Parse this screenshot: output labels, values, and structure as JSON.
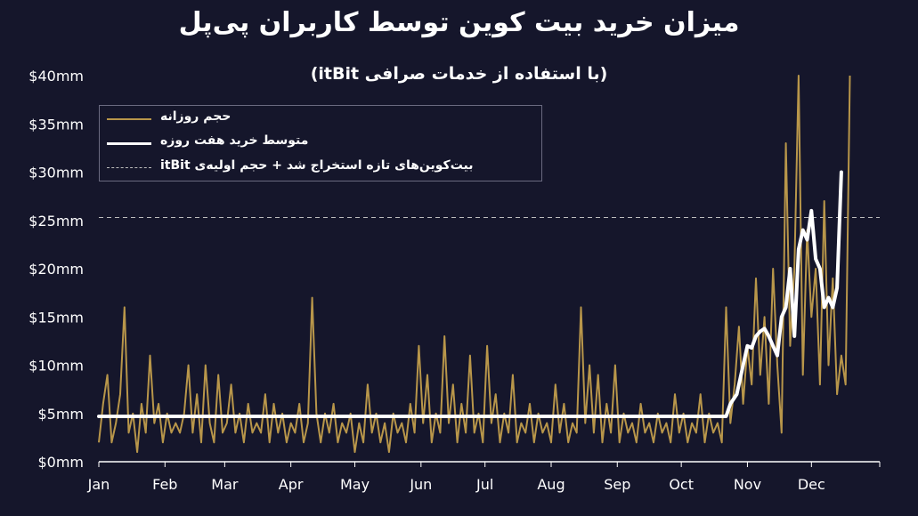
{
  "title": "میزان خرید بیت کوین توسط کاربران پی‌پل",
  "subtitle": "(با استفاده از خدمات صرافی itBit)",
  "legend": {
    "daily": "حجم روزانه",
    "avg": "متوسط خرید هفت روزه",
    "ref": "بیت‌کوین‌های تازه استخراج شد + حجم اولیه‌ی itBit"
  },
  "colors": {
    "background": "#15162b",
    "daily": "#b8964a",
    "avg": "#ffffff",
    "ref": "#bdbdbd"
  },
  "chart_data": {
    "type": "line",
    "xlabel": "",
    "ylabel": "",
    "x_ticks": [
      "Jan",
      "Feb",
      "Mar",
      "Apr",
      "May",
      "Jun",
      "Jul",
      "Aug",
      "Sep",
      "Oct",
      "Nov",
      "Dec"
    ],
    "y_ticks": [
      "$0mm",
      "$5mm",
      "$10mm",
      "$15mm",
      "$20mm",
      "$25mm",
      "$30mm",
      "$35mm",
      "$40mm"
    ],
    "ylim": [
      0,
      40
    ],
    "xlim_days": [
      1,
      367
    ],
    "reference_line": 25.3,
    "grid": false,
    "legend_position": "top-left",
    "series": [
      {
        "name": "حجم روزانه",
        "points": [
          [
            1,
            2
          ],
          [
            3,
            6
          ],
          [
            5,
            9
          ],
          [
            7,
            2
          ],
          [
            9,
            4
          ],
          [
            11,
            7
          ],
          [
            13,
            16
          ],
          [
            15,
            3
          ],
          [
            17,
            5
          ],
          [
            19,
            1
          ],
          [
            21,
            6
          ],
          [
            23,
            3
          ],
          [
            25,
            11
          ],
          [
            27,
            4
          ],
          [
            29,
            6
          ],
          [
            31,
            2
          ],
          [
            33,
            5
          ],
          [
            35,
            3
          ],
          [
            37,
            4
          ],
          [
            39,
            3
          ],
          [
            41,
            5
          ],
          [
            43,
            10
          ],
          [
            45,
            3
          ],
          [
            47,
            7
          ],
          [
            49,
            2
          ],
          [
            51,
            10
          ],
          [
            53,
            4
          ],
          [
            55,
            2
          ],
          [
            57,
            9
          ],
          [
            59,
            3
          ],
          [
            61,
            4
          ],
          [
            63,
            8
          ],
          [
            65,
            3
          ],
          [
            67,
            5
          ],
          [
            69,
            2
          ],
          [
            71,
            6
          ],
          [
            73,
            3
          ],
          [
            75,
            4
          ],
          [
            77,
            3
          ],
          [
            79,
            7
          ],
          [
            81,
            2
          ],
          [
            83,
            6
          ],
          [
            85,
            3
          ],
          [
            87,
            5
          ],
          [
            89,
            2
          ],
          [
            91,
            4
          ],
          [
            93,
            3
          ],
          [
            95,
            6
          ],
          [
            97,
            2
          ],
          [
            99,
            4
          ],
          [
            101,
            17
          ],
          [
            103,
            5
          ],
          [
            105,
            2
          ],
          [
            107,
            5
          ],
          [
            109,
            3
          ],
          [
            111,
            6
          ],
          [
            113,
            2
          ],
          [
            115,
            4
          ],
          [
            117,
            3
          ],
          [
            119,
            5
          ],
          [
            121,
            1
          ],
          [
            123,
            4
          ],
          [
            125,
            2
          ],
          [
            127,
            8
          ],
          [
            129,
            3
          ],
          [
            131,
            5
          ],
          [
            133,
            2
          ],
          [
            135,
            4
          ],
          [
            137,
            1
          ],
          [
            139,
            5
          ],
          [
            141,
            3
          ],
          [
            143,
            4
          ],
          [
            145,
            2
          ],
          [
            147,
            6
          ],
          [
            149,
            3
          ],
          [
            151,
            12
          ],
          [
            153,
            4
          ],
          [
            155,
            9
          ],
          [
            157,
            2
          ],
          [
            159,
            5
          ],
          [
            161,
            3
          ],
          [
            163,
            13
          ],
          [
            165,
            4
          ],
          [
            167,
            8
          ],
          [
            169,
            2
          ],
          [
            171,
            6
          ],
          [
            173,
            3
          ],
          [
            175,
            11
          ],
          [
            177,
            3
          ],
          [
            179,
            5
          ],
          [
            181,
            2
          ],
          [
            183,
            12
          ],
          [
            185,
            4
          ],
          [
            187,
            7
          ],
          [
            189,
            2
          ],
          [
            191,
            5
          ],
          [
            193,
            3
          ],
          [
            195,
            9
          ],
          [
            197,
            2
          ],
          [
            199,
            4
          ],
          [
            201,
            3
          ],
          [
            203,
            6
          ],
          [
            205,
            2
          ],
          [
            207,
            5
          ],
          [
            209,
            3
          ],
          [
            211,
            4
          ],
          [
            213,
            2
          ],
          [
            215,
            8
          ],
          [
            217,
            3
          ],
          [
            219,
            6
          ],
          [
            221,
            2
          ],
          [
            223,
            4
          ],
          [
            225,
            3
          ],
          [
            227,
            16
          ],
          [
            229,
            4
          ],
          [
            231,
            10
          ],
          [
            233,
            3
          ],
          [
            235,
            9
          ],
          [
            237,
            2
          ],
          [
            239,
            6
          ],
          [
            241,
            3
          ],
          [
            243,
            10
          ],
          [
            245,
            2
          ],
          [
            247,
            5
          ],
          [
            249,
            3
          ],
          [
            251,
            4
          ],
          [
            253,
            2
          ],
          [
            255,
            6
          ],
          [
            257,
            3
          ],
          [
            259,
            4
          ],
          [
            261,
            2
          ],
          [
            263,
            5
          ],
          [
            265,
            3
          ],
          [
            267,
            4
          ],
          [
            269,
            2
          ],
          [
            271,
            7
          ],
          [
            273,
            3
          ],
          [
            275,
            5
          ],
          [
            277,
            2
          ],
          [
            279,
            4
          ],
          [
            281,
            3
          ],
          [
            283,
            7
          ],
          [
            285,
            2
          ],
          [
            287,
            5
          ],
          [
            289,
            3
          ],
          [
            291,
            4
          ],
          [
            293,
            2
          ],
          [
            295,
            16
          ],
          [
            297,
            4
          ],
          [
            299,
            8
          ],
          [
            301,
            14
          ],
          [
            303,
            6
          ],
          [
            305,
            12
          ],
          [
            307,
            8
          ],
          [
            309,
            19
          ],
          [
            311,
            9
          ],
          [
            313,
            15
          ],
          [
            315,
            6
          ],
          [
            317,
            20
          ],
          [
            319,
            10
          ],
          [
            321,
            3
          ],
          [
            323,
            33
          ],
          [
            325,
            12
          ],
          [
            327,
            20
          ],
          [
            329,
            40
          ],
          [
            331,
            9
          ],
          [
            333,
            24
          ],
          [
            335,
            15
          ],
          [
            337,
            20
          ],
          [
            339,
            8
          ],
          [
            341,
            27
          ],
          [
            343,
            10
          ],
          [
            345,
            19
          ],
          [
            347,
            7
          ],
          [
            349,
            11
          ],
          [
            351,
            8
          ],
          [
            353,
            40
          ]
        ]
      },
      {
        "name": "متوسط خرید هفت روزه",
        "points": [
          [
            1,
            4.7
          ],
          [
            295,
            4.7
          ],
          [
            297,
            6
          ],
          [
            300,
            7
          ],
          [
            303,
            10
          ],
          [
            305,
            12
          ],
          [
            307,
            11.8
          ],
          [
            309,
            13
          ],
          [
            311,
            13.5
          ],
          [
            313,
            13.8
          ],
          [
            315,
            13
          ],
          [
            317,
            12
          ],
          [
            319,
            11
          ],
          [
            321,
            15
          ],
          [
            323,
            16
          ],
          [
            325,
            20
          ],
          [
            327,
            13
          ],
          [
            329,
            22
          ],
          [
            331,
            24
          ],
          [
            333,
            23
          ],
          [
            335,
            26
          ],
          [
            337,
            21
          ],
          [
            339,
            20
          ],
          [
            341,
            16
          ],
          [
            343,
            17
          ],
          [
            345,
            16
          ],
          [
            347,
            18
          ],
          [
            349,
            30
          ]
        ]
      }
    ]
  }
}
